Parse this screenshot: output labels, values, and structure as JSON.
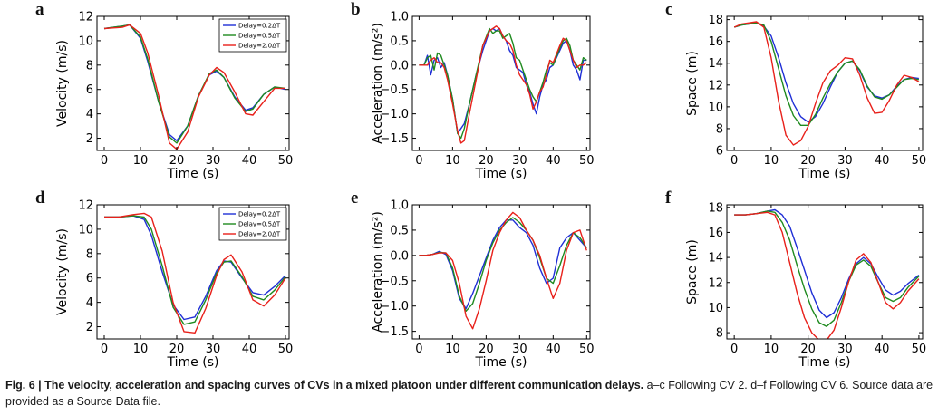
{
  "figure": {
    "caption_title": "Fig. 6 | The velocity, acceleration and spacing curves of CVs in a mixed platoon under different communication delays.",
    "caption_rest": " a–c Following CV 2. d–f Following CV 6. Source data are provided as a Source Data file."
  },
  "colors": {
    "Delay=0.2ΔT": "#1f2fd6",
    "Delay=0.5ΔT": "#1f8a1f",
    "Delay=2.0ΔT": "#e8201a"
  },
  "chart_data": [
    {
      "panel": "a",
      "type": "line",
      "xlabel": "Time (s)",
      "ylabel": "Velocity (m/s)",
      "xlim": [
        -2,
        51
      ],
      "ylim": [
        1,
        12
      ],
      "xticks": [
        0,
        10,
        20,
        30,
        40,
        50
      ],
      "yticks": [
        2,
        4,
        6,
        8,
        10,
        12
      ],
      "legend": "top-right",
      "x": [
        0,
        5,
        7,
        10,
        12,
        15,
        18,
        20,
        23,
        26,
        29,
        31,
        33,
        36,
        39,
        41,
        44,
        47,
        50
      ],
      "series": [
        {
          "name": "Delay=0.2ΔT",
          "values": [
            11.0,
            11.2,
            11.3,
            10.2,
            8.3,
            5.0,
            2.3,
            1.8,
            3.0,
            5.5,
            7.2,
            7.5,
            7.0,
            5.4,
            4.3,
            4.5,
            5.6,
            6.2,
            6.0
          ]
        },
        {
          "name": "Delay=0.5ΔT",
          "values": [
            11.0,
            11.2,
            11.3,
            10.3,
            8.5,
            5.0,
            2.1,
            1.6,
            3.0,
            5.5,
            7.3,
            7.6,
            7.0,
            5.3,
            4.2,
            4.4,
            5.6,
            6.2,
            6.1
          ]
        },
        {
          "name": "Delay=2.0ΔT",
          "values": [
            11.0,
            11.1,
            11.3,
            10.6,
            9.0,
            5.5,
            1.6,
            1.1,
            2.5,
            5.4,
            7.2,
            7.8,
            7.4,
            5.8,
            4.0,
            3.9,
            5.0,
            6.1,
            6.1
          ]
        }
      ]
    },
    {
      "panel": "b",
      "type": "line",
      "xlabel": "Time (s)",
      "ylabel": "Acceleration (m/s²)",
      "xlim": [
        -2,
        51
      ],
      "ylim": [
        -1.75,
        1.0
      ],
      "xticks": [
        0,
        10,
        20,
        30,
        40,
        50
      ],
      "yticks": [
        -1.5,
        -1.0,
        -0.5,
        0.0,
        0.5,
        1.0
      ],
      "x": [
        0,
        1.5,
        2.5,
        3.5,
        4.5,
        5.5,
        6.5,
        7.5,
        8.5,
        10,
        11.5,
        12.5,
        13.5,
        15,
        17,
        19,
        21,
        22,
        23,
        24,
        25,
        26,
        27,
        28,
        29,
        30,
        31,
        32,
        33,
        34,
        35,
        36,
        37,
        38,
        39,
        40,
        42,
        43,
        44,
        45,
        46,
        47,
        48,
        49,
        50
      ],
      "series": [
        {
          "name": "Delay=0.2ΔT",
          "values": [
            0.0,
            0.0,
            0.2,
            -0.2,
            0.1,
            0.15,
            -0.05,
            0.05,
            -0.2,
            -0.7,
            -1.4,
            -1.3,
            -1.2,
            -0.8,
            -0.2,
            0.3,
            0.7,
            0.75,
            0.7,
            0.75,
            0.6,
            0.5,
            0.3,
            0.2,
            -0.05,
            -0.1,
            -0.15,
            -0.4,
            -0.55,
            -0.8,
            -1.0,
            -0.65,
            -0.4,
            -0.3,
            -0.05,
            0.0,
            0.3,
            0.45,
            0.5,
            0.3,
            0.0,
            -0.1,
            -0.3,
            0.1,
            0.1
          ]
        },
        {
          "name": "Delay=0.5ΔT",
          "values": [
            0.0,
            0.0,
            0.15,
            0.2,
            -0.1,
            0.25,
            0.2,
            0.0,
            -0.2,
            -0.7,
            -1.4,
            -1.5,
            -1.3,
            -0.8,
            -0.2,
            0.4,
            0.75,
            0.65,
            0.7,
            0.7,
            0.55,
            0.6,
            0.65,
            0.45,
            0.15,
            0.1,
            -0.1,
            -0.3,
            -0.5,
            -0.65,
            -0.75,
            -0.55,
            -0.35,
            -0.1,
            0.05,
            0.0,
            0.35,
            0.5,
            0.55,
            0.4,
            0.1,
            0.0,
            -0.1,
            0.15,
            0.1
          ]
        },
        {
          "name": "Delay=2.0ΔT",
          "values": [
            0.0,
            0.0,
            0.0,
            0.1,
            0.15,
            0.05,
            0.05,
            -0.05,
            -0.3,
            -0.8,
            -1.35,
            -1.6,
            -1.55,
            -1.0,
            -0.3,
            0.4,
            0.7,
            0.75,
            0.8,
            0.75,
            0.6,
            0.5,
            0.45,
            0.3,
            0.0,
            -0.2,
            -0.3,
            -0.4,
            -0.6,
            -0.9,
            -0.75,
            -0.55,
            -0.45,
            -0.2,
            0.1,
            0.05,
            0.4,
            0.55,
            0.5,
            0.3,
            0.1,
            -0.05,
            0.0,
            0.0,
            0.05
          ]
        }
      ]
    },
    {
      "panel": "c",
      "type": "line",
      "xlabel": "Time (s)",
      "ylabel": "Space (m)",
      "xlim": [
        -2,
        51
      ],
      "ylim": [
        6,
        18.3
      ],
      "xticks": [
        0,
        10,
        20,
        30,
        40,
        50
      ],
      "yticks": [
        6,
        8,
        10,
        12,
        14,
        16,
        18
      ],
      "x": [
        0,
        2,
        4,
        6,
        8,
        10,
        12,
        14,
        16,
        18,
        20,
        22,
        24,
        26,
        28,
        30,
        32,
        34,
        36,
        38,
        40,
        42,
        44,
        46,
        48,
        50
      ],
      "series": [
        {
          "name": "Delay=0.2ΔT",
          "values": [
            17.3,
            17.5,
            17.6,
            17.7,
            17.4,
            16.5,
            14.5,
            12.2,
            10.3,
            9.1,
            8.6,
            9.1,
            10.3,
            11.8,
            13.2,
            14.0,
            14.2,
            13.3,
            11.8,
            11.0,
            10.8,
            11.1,
            11.9,
            12.5,
            12.7,
            12.6
          ]
        },
        {
          "name": "Delay=0.5ΔT",
          "values": [
            17.3,
            17.5,
            17.6,
            17.7,
            17.5,
            16.0,
            13.5,
            11.0,
            9.2,
            8.3,
            8.3,
            9.3,
            10.8,
            12.1,
            13.2,
            14.0,
            14.2,
            13.4,
            11.9,
            10.9,
            10.7,
            11.1,
            11.8,
            12.5,
            12.6,
            12.5
          ]
        },
        {
          "name": "Delay=2.0ΔT",
          "values": [
            17.3,
            17.6,
            17.7,
            17.8,
            17.3,
            14.5,
            10.5,
            7.4,
            6.5,
            6.9,
            8.2,
            10.3,
            12.2,
            13.3,
            13.8,
            14.5,
            14.4,
            12.9,
            10.8,
            9.4,
            9.5,
            10.6,
            12.0,
            12.9,
            12.7,
            12.3
          ]
        }
      ]
    },
    {
      "panel": "d",
      "type": "line",
      "xlabel": "Time (s)",
      "ylabel": "Velocity (m/s)",
      "xlim": [
        -2,
        51
      ],
      "ylim": [
        1,
        12
      ],
      "xticks": [
        0,
        10,
        20,
        30,
        40,
        50
      ],
      "yticks": [
        2,
        4,
        6,
        8,
        10,
        12
      ],
      "legend": "top-right",
      "x": [
        0,
        4,
        8,
        11,
        13,
        16,
        19,
        22,
        25,
        28,
        31,
        33,
        35,
        38,
        41,
        44,
        47,
        50
      ],
      "series": [
        {
          "name": "Delay=0.2ΔT",
          "values": [
            11.0,
            11.0,
            11.1,
            10.8,
            9.5,
            6.5,
            3.8,
            2.6,
            2.8,
            4.5,
            6.6,
            7.4,
            7.3,
            6.0,
            4.8,
            4.6,
            5.3,
            6.2
          ]
        },
        {
          "name": "Delay=0.5ΔT",
          "values": [
            11.0,
            11.0,
            11.1,
            11.0,
            10.0,
            7.0,
            3.6,
            2.2,
            2.4,
            4.2,
            6.4,
            7.3,
            7.4,
            6.1,
            4.5,
            4.2,
            5.0,
            6.1
          ]
        },
        {
          "name": "Delay=2.0ΔT",
          "values": [
            11.0,
            11.0,
            11.2,
            11.3,
            11.0,
            8.2,
            4.0,
            1.6,
            1.5,
            3.5,
            6.2,
            7.5,
            7.9,
            6.5,
            4.2,
            3.7,
            4.6,
            6.0
          ]
        }
      ]
    },
    {
      "panel": "e",
      "type": "line",
      "xlabel": "Time (s)",
      "ylabel": "Acceleration (m/s²)",
      "xlim": [
        -2,
        51
      ],
      "ylim": [
        -1.65,
        1.0
      ],
      "xticks": [
        0,
        10,
        20,
        30,
        40,
        50
      ],
      "yticks": [
        -1.5,
        -1.0,
        -0.5,
        0.0,
        0.5,
        1.0
      ],
      "x": [
        0,
        2,
        4,
        6,
        8,
        10,
        12,
        14,
        16,
        18,
        20,
        22,
        24,
        26,
        28,
        30,
        32,
        34,
        36,
        38,
        40,
        42,
        44,
        46,
        48,
        50
      ],
      "series": [
        {
          "name": "Delay=0.2ΔT",
          "values": [
            0.0,
            0.0,
            0.02,
            0.08,
            0.02,
            -0.3,
            -0.85,
            -1.05,
            -0.75,
            -0.4,
            -0.05,
            0.3,
            0.55,
            0.7,
            0.7,
            0.55,
            0.45,
            0.2,
            -0.25,
            -0.55,
            -0.45,
            0.15,
            0.35,
            0.45,
            0.3,
            0.15
          ]
        },
        {
          "name": "Delay=0.5ΔT",
          "values": [
            0.0,
            0.0,
            0.02,
            0.06,
            0.05,
            -0.25,
            -0.8,
            -1.1,
            -0.95,
            -0.55,
            -0.1,
            0.25,
            0.5,
            0.65,
            0.75,
            0.65,
            0.5,
            0.3,
            -0.05,
            -0.45,
            -0.55,
            -0.2,
            0.2,
            0.45,
            0.35,
            0.15
          ]
        },
        {
          "name": "Delay=2.0ΔT",
          "values": [
            0.0,
            0.0,
            0.02,
            0.05,
            0.05,
            -0.1,
            -0.55,
            -1.2,
            -1.45,
            -1.05,
            -0.5,
            0.1,
            0.45,
            0.7,
            0.85,
            0.75,
            0.5,
            0.3,
            0.0,
            -0.45,
            -0.85,
            -0.55,
            0.1,
            0.45,
            0.5,
            0.1
          ]
        }
      ]
    },
    {
      "panel": "f",
      "type": "line",
      "xlabel": "Time (s)",
      "ylabel": "Space (m)",
      "xlim": [
        -2,
        51
      ],
      "ylim": [
        7.5,
        18.2
      ],
      "xticks": [
        0,
        10,
        20,
        30,
        40,
        50
      ],
      "yticks": [
        8,
        10,
        12,
        14,
        16,
        18
      ],
      "x": [
        0,
        3,
        6,
        9,
        11,
        13,
        15,
        17,
        19,
        21,
        23,
        25,
        27,
        29,
        31,
        33,
        35,
        37,
        39,
        41,
        43,
        45,
        47,
        50
      ],
      "series": [
        {
          "name": "Delay=0.2ΔT",
          "values": [
            17.4,
            17.4,
            17.5,
            17.7,
            17.8,
            17.4,
            16.5,
            14.8,
            13.0,
            11.2,
            9.8,
            9.2,
            9.6,
            10.8,
            12.3,
            13.5,
            14.0,
            13.5,
            12.4,
            11.4,
            11.0,
            11.3,
            11.9,
            12.6
          ]
        },
        {
          "name": "Delay=0.5ΔT",
          "values": [
            17.4,
            17.4,
            17.5,
            17.7,
            17.6,
            16.8,
            15.4,
            13.4,
            11.5,
            9.9,
            8.8,
            8.5,
            9.0,
            10.4,
            12.1,
            13.4,
            13.8,
            13.3,
            12.0,
            10.8,
            10.5,
            10.8,
            11.6,
            12.5
          ]
        },
        {
          "name": "Delay=2.0ΔT",
          "values": [
            17.4,
            17.4,
            17.5,
            17.6,
            17.4,
            16.0,
            13.6,
            11.2,
            9.2,
            8.0,
            7.4,
            7.4,
            8.2,
            10.0,
            12.1,
            13.8,
            14.3,
            13.6,
            12.0,
            10.4,
            9.9,
            10.4,
            11.3,
            12.3
          ]
        }
      ]
    }
  ]
}
